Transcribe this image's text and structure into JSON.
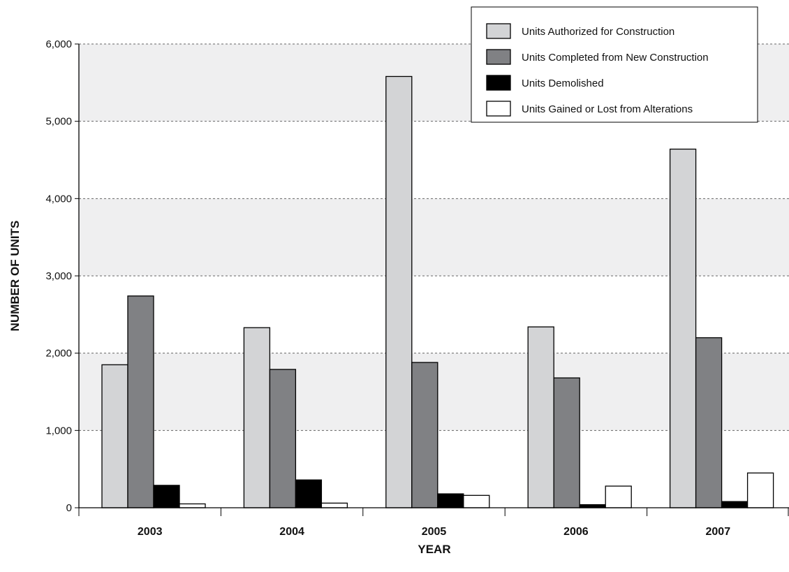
{
  "chart_data": {
    "type": "bar",
    "categories": [
      "2003",
      "2004",
      "2005",
      "2006",
      "2007"
    ],
    "series": [
      {
        "name": "Units Authorized for Construction",
        "color": "#d3d4d6",
        "values": [
          1850,
          2330,
          5580,
          2340,
          4640
        ]
      },
      {
        "name": "Units Completed from New Construction",
        "color": "#808184",
        "values": [
          2740,
          1790,
          1880,
          1680,
          2200
        ]
      },
      {
        "name": "Units Demolished",
        "color": "#000000",
        "values": [
          290,
          360,
          180,
          40,
          80
        ]
      },
      {
        "name": "Units Gained or Lost from Alterations",
        "color": "#ffffff",
        "values": [
          50,
          60,
          160,
          280,
          450
        ]
      }
    ],
    "title": "",
    "xlabel": "YEAR",
    "ylabel": "NUMBER OF UNITS",
    "ylim": [
      0,
      6000
    ],
    "yticks": [
      "0",
      "1,000",
      "2,000",
      "3,000",
      "4,000",
      "5,000",
      "6,000"
    ],
    "grid": true,
    "legend": "top-right"
  }
}
